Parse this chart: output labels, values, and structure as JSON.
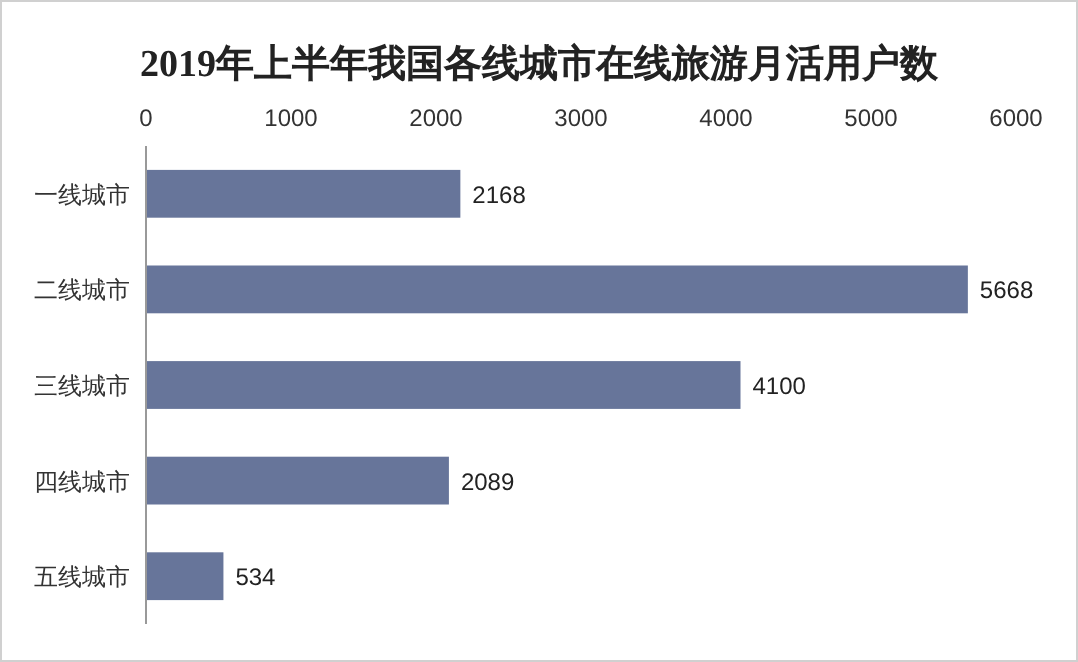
{
  "chart_data": {
    "type": "bar",
    "orientation": "horizontal",
    "title": "2019年上半年我国各线城市在线旅游月活用户数",
    "categories": [
      "一线城市",
      "二线城市",
      "三线城市",
      "四线城市",
      "五线城市"
    ],
    "values": [
      2168,
      5668,
      4100,
      2089,
      534
    ],
    "color": "#67759a",
    "xlim": [
      0,
      6000
    ],
    "xticks": [
      0,
      1000,
      2000,
      3000,
      4000,
      5000,
      6000
    ],
    "data_labels": true
  }
}
